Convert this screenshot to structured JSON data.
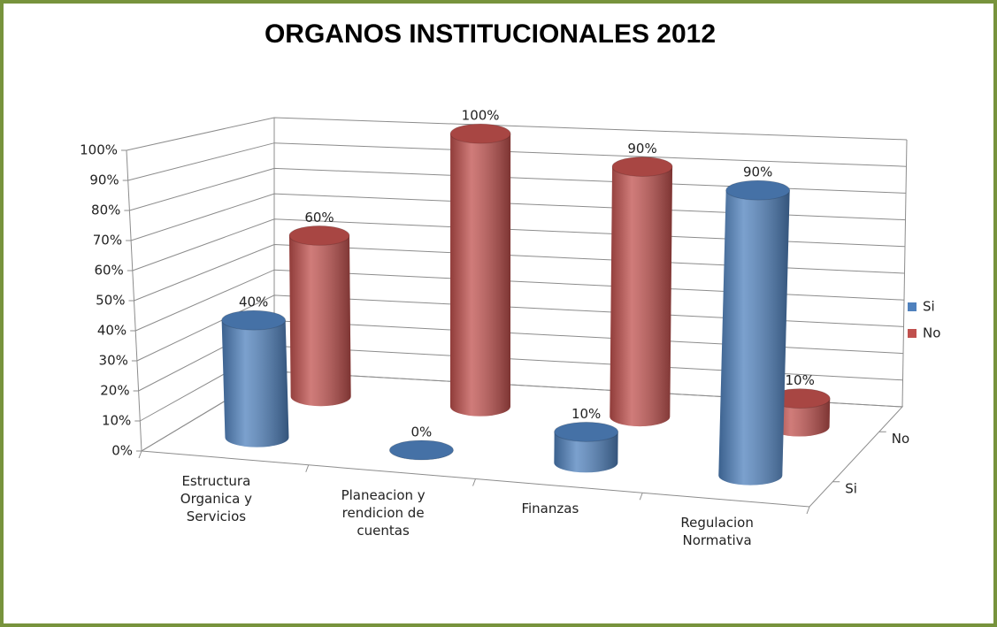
{
  "chart_data": {
    "type": "bar3d",
    "title": "ORGANOS INSTITUCIONALES 2012",
    "categories": [
      "Estructura Organica y Servicios",
      "Planeacion y rendicion de cuentas",
      "Finanzas",
      "Regulacion Normativa"
    ],
    "series": [
      {
        "name": "Si",
        "color": "#4f81bd",
        "values": [
          40,
          0,
          10,
          90
        ],
        "value_labels": [
          "40%",
          "0%",
          "10%",
          "90%"
        ]
      },
      {
        "name": "No",
        "color": "#c0504d",
        "values": [
          60,
          100,
          90,
          10
        ],
        "value_labels": [
          "60%",
          "100%",
          "90%",
          "10%"
        ]
      }
    ],
    "ylim": [
      0,
      100
    ],
    "yticks": [
      {
        "value": 0,
        "label": "0%"
      },
      {
        "value": 10,
        "label": "10%"
      },
      {
        "value": 20,
        "label": "20%"
      },
      {
        "value": 30,
        "label": "30%"
      },
      {
        "value": 40,
        "label": "40%"
      },
      {
        "value": 50,
        "label": "50%"
      },
      {
        "value": 60,
        "label": "60%"
      },
      {
        "value": 70,
        "label": "70%"
      },
      {
        "value": 80,
        "label": "80%"
      },
      {
        "value": 90,
        "label": "90%"
      },
      {
        "value": 100,
        "label": "100%"
      }
    ],
    "grid": true,
    "legend": "right"
  }
}
